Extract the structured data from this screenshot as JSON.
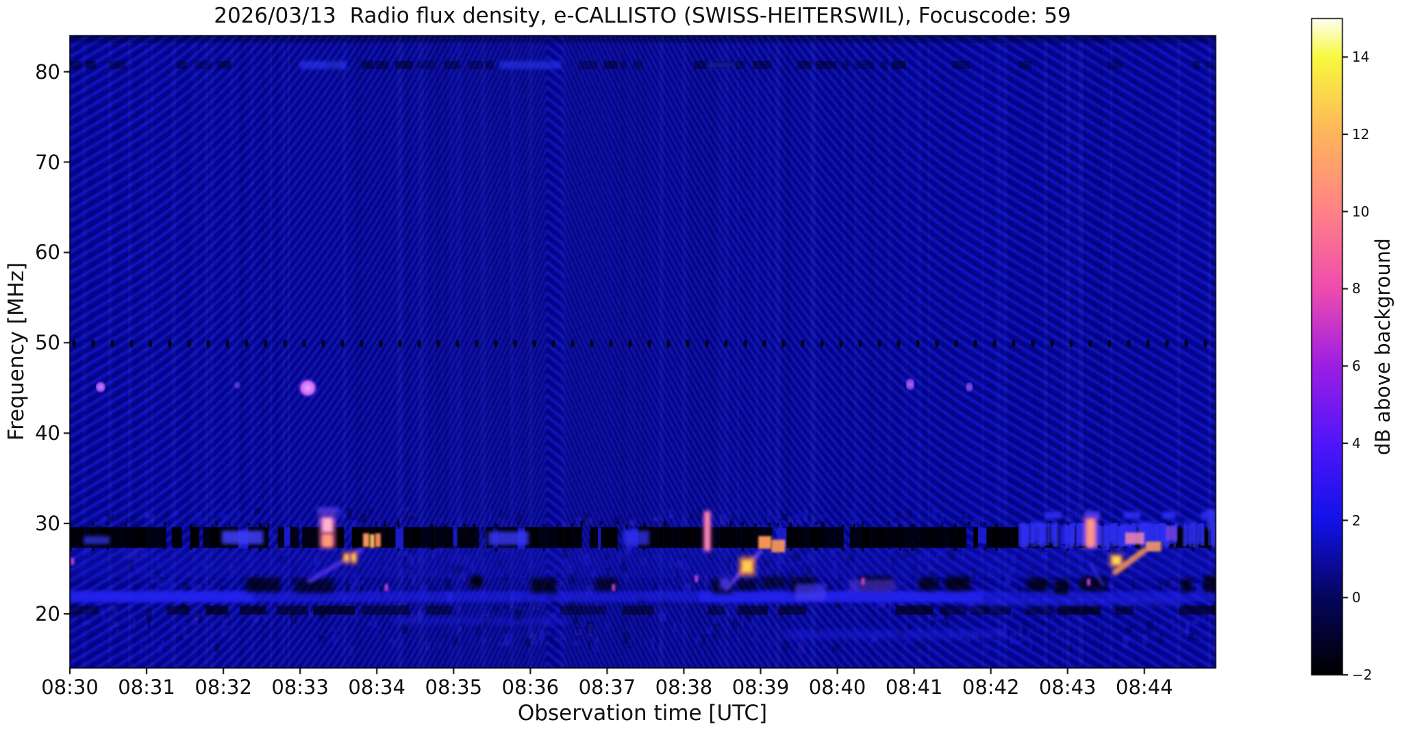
{
  "title": "2026/03/13  Radio flux density, e-CALLISTO (SWISS-HEITERSWIL), Focuscode: 59",
  "observation": {
    "date": "2026/03/13",
    "instrument": "e-CALLISTO",
    "station": "SWISS-HEITERSWIL",
    "focuscode": "59"
  },
  "axes": {
    "xlabel": "Observation time [UTC]",
    "ylabel": "Frequency [MHz]",
    "x_tick_labels": [
      "08:30",
      "08:31",
      "08:32",
      "08:33",
      "08:34",
      "08:35",
      "08:36",
      "08:37",
      "08:38",
      "08:39",
      "08:40",
      "08:41",
      "08:42",
      "08:43",
      "08:44"
    ],
    "x_tick_minutes": [
      0,
      1,
      2,
      3,
      4,
      5,
      6,
      7,
      8,
      9,
      10,
      11,
      12,
      13,
      14
    ],
    "y_tick_labels": [
      "80",
      "70",
      "60",
      "50",
      "40",
      "30",
      "20"
    ],
    "y_tick_values": [
      80,
      70,
      60,
      50,
      40,
      30,
      20
    ]
  },
  "colorbar": {
    "label": "dB above background",
    "tick_labels": [
      "14",
      "12",
      "10",
      "8",
      "6",
      "4",
      "2",
      "0",
      "−2"
    ],
    "tick_values": [
      14,
      12,
      10,
      8,
      6,
      4,
      2,
      0,
      -2
    ],
    "vmin": -2,
    "vmax": 15,
    "colormap_stops": [
      [
        0.0,
        "#000000"
      ],
      [
        0.118,
        "#05055e"
      ],
      [
        0.235,
        "#1212e8"
      ],
      [
        0.353,
        "#5016fa"
      ],
      [
        0.47,
        "#9c1ee4"
      ],
      [
        0.588,
        "#ee4cae"
      ],
      [
        0.706,
        "#ff8287"
      ],
      [
        0.824,
        "#ffb45c"
      ],
      [
        0.941,
        "#f8f83e"
      ],
      [
        1.0,
        "#fffff2"
      ]
    ]
  },
  "chart_data": {
    "type": "heatmap",
    "time_start_utc": "08:30",
    "time_end_utc": "08:45",
    "duration_minutes": 14.93,
    "freq_range_mhz": [
      14,
      84
    ],
    "value_range_db": [
      -2,
      15
    ],
    "quiet_background_db": 1.5,
    "features": {
      "moire": {
        "apex_minute": 6.28,
        "spacing_px": 15
      },
      "rfi_dashed_line_mhz": 50,
      "top_dark_rows": [
        {
          "f": [
            83.2,
            84.0
          ],
          "alpha": 0.3,
          "dashed": false
        },
        {
          "f": [
            80.3,
            81.2
          ],
          "alpha": 0.38,
          "dashed": true
        }
      ],
      "top_blue_blobs": [
        {
          "t": [
            3.0,
            3.6
          ],
          "f": [
            80.3,
            81.2
          ],
          "color": "#2a35f0",
          "alpha": 0.7
        },
        {
          "t": [
            5.6,
            6.4
          ],
          "f": [
            80.3,
            81.2
          ],
          "color": "#2a35f0",
          "alpha": 0.6
        },
        {
          "t": [
            8.3,
            8.65
          ],
          "f": [
            80.4,
            81.1
          ],
          "color": "#2330e0",
          "alpha": 0.45
        }
      ],
      "dots_46mhz": [
        {
          "t": 0.4,
          "f": 45.1,
          "w": 7,
          "h": 10,
          "color": "#a855f0",
          "core": "#c98aff",
          "alpha": 0.9
        },
        {
          "t": 2.18,
          "f": 45.3,
          "w": 6,
          "h": 7,
          "color": "#5533cc",
          "core": "#7a55e0",
          "alpha": 0.65
        },
        {
          "t": 3.1,
          "f": 45.0,
          "w": 16,
          "h": 15,
          "color": "#d66bff",
          "core": "#f2a8ff",
          "alpha": 0.95
        },
        {
          "t": 10.95,
          "f": 45.4,
          "w": 6,
          "h": 11,
          "color": "#8f45e8",
          "core": "#b075f5",
          "alpha": 0.85
        },
        {
          "t": 11.72,
          "f": 45.1,
          "w": 5,
          "h": 9,
          "color": "#7a3ae0",
          "core": "#9a60ee",
          "alpha": 0.8
        }
      ],
      "bands": {
        "barcode_black": {
          "f": [
            27.3,
            29.6
          ],
          "black_density": 0.78,
          "gap_color": "#1e1ed8"
        },
        "static_zone": {
          "f": [
            24.0,
            27.3
          ],
          "tint": "#1c1cd7",
          "alpha": 0.22
        },
        "dark_blob_row": {
          "f": [
            22.5,
            24.0
          ],
          "t_start": 2.3
        },
        "bright_blue_band": {
          "f": [
            21.3,
            22.5
          ],
          "color": "#2323f0",
          "hot_segments": [
            [
              0,
              2.4
            ],
            [
              8.2,
              11.9
            ]
          ]
        },
        "dark_dash_band": {
          "f": [
            19.9,
            20.9
          ]
        },
        "faint_rows": [
          {
            "t": [
              4.2,
              6.5
            ],
            "f": [
              18.8,
              19.6
            ],
            "color": "#1c1cd4",
            "alpha": 0.45
          },
          {
            "t": [
              9.3,
              12.2
            ],
            "f": [
              17.2,
              18.2
            ],
            "color": "#1d1dd8",
            "alpha": 0.5
          },
          {
            "t": [
              11.6,
              14.5
            ],
            "f": [
              20.9,
              21.5
            ],
            "color": "#2424e0",
            "alpha": 0.55
          }
        ]
      },
      "blue_patches": [
        {
          "t": [
            0.18,
            0.52
          ],
          "f": [
            27.7,
            28.6
          ],
          "color": "#3434ee",
          "alpha": 0.75
        },
        {
          "t": [
            1.98,
            2.52
          ],
          "f": [
            27.7,
            29.2
          ],
          "color": "#3c3cf4",
          "alpha": 0.9
        },
        {
          "t": [
            5.45,
            5.98
          ],
          "f": [
            27.6,
            29.1
          ],
          "color": "#3636ee",
          "alpha": 0.85
        },
        {
          "t": [
            7.21,
            7.55
          ],
          "f": [
            27.6,
            29.2
          ],
          "color": "#3030ea",
          "alpha": 0.8
        },
        {
          "t": [
            9.45,
            9.85
          ],
          "f": [
            21.5,
            23.3
          ],
          "color": "#4a3cf0",
          "alpha": 0.65
        },
        {
          "t": [
            10.15,
            10.75
          ],
          "f": [
            22.4,
            23.8
          ],
          "color": "#5b3bee",
          "alpha": 0.55
        },
        {
          "t": [
            14.82,
            14.93
          ],
          "f": [
            29.3,
            31.6
          ],
          "color": "#3c3cf8",
          "alpha": 0.8
        },
        {
          "t": [
            3.22,
            3.52
          ],
          "f": [
            31.1,
            31.8
          ],
          "color": "#3a3aee",
          "alpha": 0.6
        }
      ],
      "blue_dash_rows": [
        {
          "f": [
            30.5,
            31.3
          ],
          "segs": [
            [
              12.7,
              12.92
            ],
            [
              13.22,
              13.42
            ],
            [
              13.73,
              13.95
            ],
            [
              14.24,
              14.41
            ],
            [
              14.74,
              14.93
            ]
          ],
          "color": "#2d2df2",
          "alpha": 0.9
        },
        {
          "f": [
            29.7,
            30.3
          ],
          "segs": [
            [
              12.5,
              12.72
            ],
            [
              13.9,
              14.15
            ],
            [
              14.5,
              14.68
            ]
          ],
          "color": "#2828e8",
          "alpha": 0.65
        }
      ],
      "bursts": [
        {
          "name": "burst-0833",
          "streaks": [
            {
              "t": [
                3.26,
                3.45
              ],
              "f": [
                28.9,
                30.7
              ],
              "core": "#ffb8c8",
              "edge": "#f07cd8",
              "alpha": 0.95
            },
            {
              "t": [
                3.26,
                3.45
              ],
              "f": [
                27.3,
                28.9
              ],
              "core": "#ffa072",
              "edge": "#ff74a6",
              "alpha": 0.95
            }
          ],
          "halos": [
            {
              "t": [
                3.24,
                3.48
              ],
              "f": [
                30.6,
                31.7
              ],
              "color": "#8a44e0",
              "alpha": 0.45
            }
          ],
          "diags": [
            {
              "from": [
                3.12,
                23.6
              ],
              "to": [
                3.8,
                27.1
              ],
              "color": "#5a35f0",
              "width": 6,
              "alpha": 0.85
            }
          ],
          "blobs": [
            {
              "t": [
                3.56,
                3.65
              ],
              "f": [
                25.6,
                26.8
              ],
              "core": "#ffc84e",
              "edge": "#ff8a40",
              "alpha": 0.95
            },
            {
              "t": [
                3.66,
                3.74
              ],
              "f": [
                25.5,
                26.9
              ],
              "core": "#ffd452",
              "edge": "#ff8a40",
              "alpha": 0.95
            }
          ],
          "dashes": [
            {
              "t": [
                3.82,
                3.9
              ],
              "f": [
                27.4,
                28.9
              ],
              "color": "#ff9d5e",
              "alpha": 0.95
            },
            {
              "t": [
                3.91,
                3.97
              ],
              "f": [
                27.3,
                28.8
              ],
              "color": "#ffc060",
              "alpha": 0.95
            },
            {
              "t": [
                3.98,
                4.05
              ],
              "f": [
                27.4,
                28.9
              ],
              "color": "#ff8f56",
              "alpha": 0.95
            }
          ]
        },
        {
          "name": "burst-0838",
          "streaks": [
            {
              "t": [
                8.26,
                8.35
              ],
              "f": [
                26.9,
                31.4
              ],
              "core": "#ff8f9c",
              "edge": "#e05fd0",
              "alpha": 0.95
            }
          ],
          "halos": [],
          "diags": [
            {
              "from": [
                8.55,
                22.8
              ],
              "to": [
                9.0,
                26.9
              ],
              "color": "#6a3df2",
              "width": 6,
              "alpha": 0.9
            }
          ],
          "blobs": [
            {
              "t": [
                8.72,
                8.93
              ],
              "f": [
                24.2,
                26.3
              ],
              "core": "#ffd24e",
              "edge": "#ff8c3a",
              "alpha": 0.95
            },
            {
              "t": [
                8.45,
                8.62
              ],
              "f": [
                22.6,
                24.2
              ],
              "core": "#4a3cf0",
              "edge": "#3428c8",
              "alpha": 0.7
            }
          ],
          "dashes": [
            {
              "t": [
                8.97,
                9.14
              ],
              "f": [
                27.2,
                28.6
              ],
              "color": "#ff9b58",
              "alpha": 0.95
            },
            {
              "t": [
                9.14,
                9.32
              ],
              "f": [
                26.8,
                28.2
              ],
              "color": "#ff9b58",
              "alpha": 0.9
            }
          ]
        },
        {
          "name": "burst-0843",
          "noisy_blue": {
            "t": [
              12.35,
              14.93
            ],
            "f": [
              27.4,
              30.1
            ],
            "color": "#2d2df0",
            "alpha": 0.55
          },
          "streaks": [
            {
              "t": [
                13.22,
                13.38
              ],
              "f": [
                27.3,
                30.6
              ],
              "core": "#ff9a7c",
              "edge": "#ee72c8",
              "alpha": 0.95
            }
          ],
          "halos": [
            {
              "t": [
                13.2,
                13.42
              ],
              "f": [
                30.4,
                31.3
              ],
              "color": "#7a44e0",
              "alpha": 0.4
            }
          ],
          "diags": [
            {
              "from": [
                13.62,
                24.6
              ],
              "to": [
                14.0,
                27.0
              ],
              "color": "#ff9757",
              "width": 9,
              "alpha": 0.85
            },
            {
              "from": [
                13.3,
                25.5
              ],
              "to": [
                13.46,
                23.2
              ],
              "color": "#4038f0",
              "width": 5,
              "alpha": 0.6
            }
          ],
          "blobs": [
            {
              "t": [
                13.55,
                13.72
              ],
              "f": [
                25.2,
                26.6
              ],
              "core": "#ffe055",
              "edge": "#ff9b40",
              "alpha": 0.95
            }
          ],
          "dashes": [
            {
              "t": [
                13.75,
                14.0
              ],
              "f": [
                27.7,
                29.0
              ],
              "color": "#f88bb0",
              "alpha": 0.8
            },
            {
              "t": [
                14.02,
                14.22
              ],
              "f": [
                26.9,
                28.0
              ],
              "color": "#ffa061",
              "alpha": 0.85
            },
            {
              "t": [
                14.28,
                14.42
              ],
              "f": [
                28.1,
                29.7
              ],
              "color": "#8a4ae0",
              "alpha": 0.65
            }
          ]
        }
      ],
      "magenta_flecks": [
        {
          "t": 0.03,
          "f": 25.8
        },
        {
          "t": 4.12,
          "f": 22.9
        },
        {
          "t": 7.08,
          "f": 22.9
        },
        {
          "t": 8.16,
          "f": 23.9
        },
        {
          "t": 10.33,
          "f": 23.6
        },
        {
          "t": 13.27,
          "f": 23.5
        }
      ]
    }
  }
}
